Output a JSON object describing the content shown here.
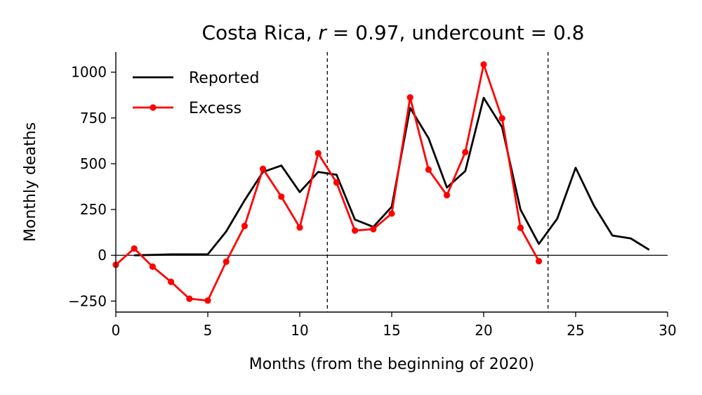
{
  "chart_data": {
    "type": "line",
    "title": "Costa Rica, r = 0.97, undercount = 0.8",
    "title_parts": {
      "country": "Costa Rica, ",
      "r_symbol": "r",
      "r_eq": " = 0.97, undercount = 0.8"
    },
    "xlabel": "Months (from the beginning of 2020)",
    "ylabel": "Monthly deaths",
    "xlim": [
      0,
      30
    ],
    "ylim": [
      -310,
      1110
    ],
    "xticks": [
      0,
      5,
      10,
      15,
      20,
      25,
      30
    ],
    "yticks": [
      -250,
      0,
      250,
      500,
      750,
      1000
    ],
    "vlines": [
      11.5,
      23.5
    ],
    "zero_line": true,
    "grid": false,
    "legend_position": "top-left",
    "series": [
      {
        "name": "Reported",
        "color": "#000000",
        "marker": false,
        "x": [
          1,
          2,
          3,
          4,
          5,
          6,
          7,
          8,
          9,
          10,
          11,
          12,
          13,
          14,
          15,
          16,
          17,
          18,
          19,
          20,
          21,
          22,
          23,
          24,
          25,
          26,
          27,
          28,
          29
        ],
        "y": [
          0,
          2,
          5,
          5,
          5,
          130,
          300,
          455,
          490,
          345,
          455,
          440,
          195,
          155,
          265,
          805,
          640,
          370,
          460,
          860,
          700,
          250,
          62,
          200,
          478,
          270,
          108,
          92,
          30
        ]
      },
      {
        "name": "Excess",
        "color": "#ff0000",
        "marker": true,
        "x": [
          0,
          1,
          2,
          3,
          4,
          5,
          6,
          7,
          8,
          9,
          10,
          11,
          12,
          13,
          14,
          15,
          16,
          17,
          18,
          19,
          20,
          21,
          22,
          23
        ],
        "y": [
          -52,
          37,
          -62,
          -145,
          -237,
          -247,
          -35,
          160,
          472,
          320,
          152,
          557,
          397,
          135,
          143,
          228,
          862,
          468,
          328,
          563,
          1042,
          748,
          150,
          -32
        ]
      }
    ]
  }
}
